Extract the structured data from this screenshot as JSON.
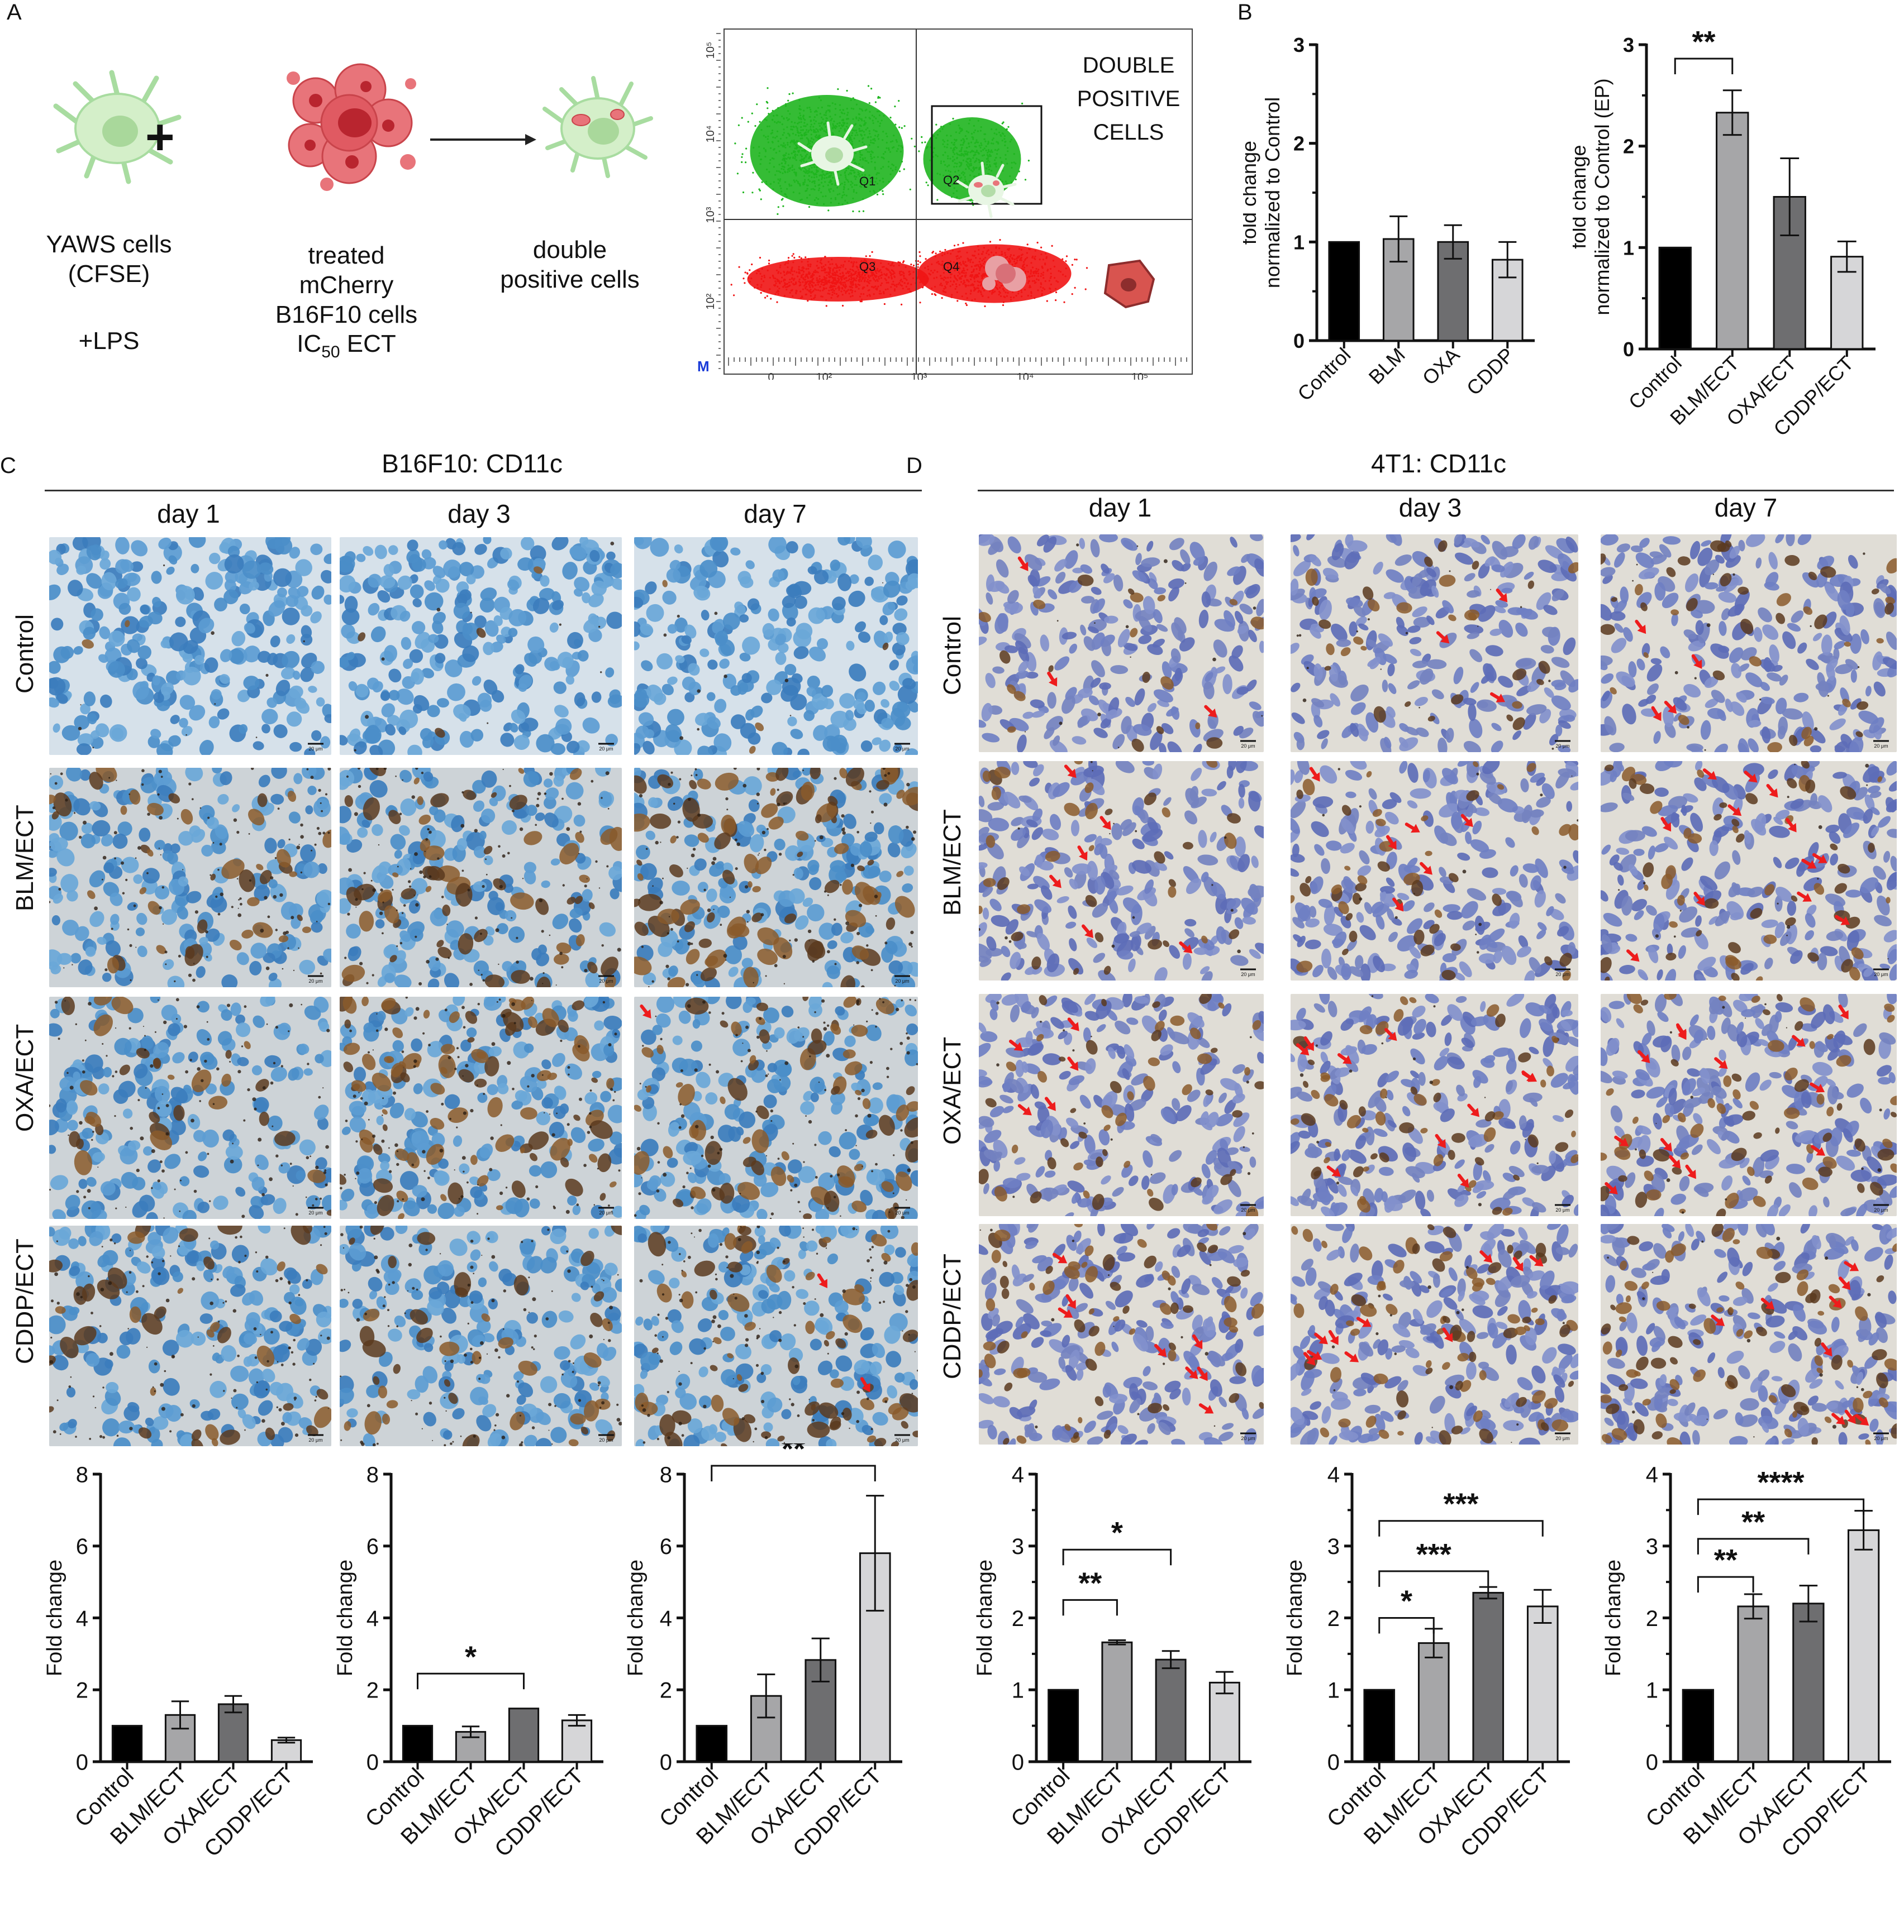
{
  "panels": {
    "A": "A",
    "B": "B",
    "C": "C",
    "D": "D"
  },
  "schematic": {
    "yaws_line1": "YAWS cells",
    "yaws_line2": "(CFSE)",
    "lps": "+LPS",
    "treated_line1": "treated",
    "treated_line2": "mCherry",
    "treated_line3": "B16F10 cells",
    "treated_line4_base": "IC",
    "treated_line4_sub": "50",
    "treated_line4_rest": " ECT",
    "double_line1": "double",
    "double_line2": "positive cells",
    "plus": "+"
  },
  "flow": {
    "label_line1": "DOUBLE",
    "label_line2": "POSITIVE",
    "label_line3": "CELLS",
    "q1": "Q1",
    "q2": "Q2",
    "q3": "Q3",
    "q4": "Q4",
    "m": "M",
    "yticks": [
      "10⁵",
      "10⁴",
      "10³",
      "10²"
    ],
    "xticks": [
      "0",
      "10²",
      "10³",
      "10⁴",
      "10⁵"
    ],
    "colors": {
      "green": "#1fb51f",
      "red": "#f01414"
    }
  },
  "section_c": {
    "title": "B16F10: CD11c",
    "cols": [
      "day 1",
      "day 3",
      "day 7"
    ],
    "rows": [
      "Control",
      "BLM/ECT",
      "OXA/ECT",
      "CDDP/ECT"
    ]
  },
  "section_d": {
    "title": "4T1: CD11c",
    "cols": [
      "day 1",
      "day 3",
      "day 7"
    ],
    "rows": [
      "Control",
      "BLM/ECT",
      "OXA/ECT",
      "CDDP/ECT"
    ]
  },
  "scale_bar": "20 μm",
  "chart_data": [
    {
      "id": "B1",
      "type": "bar",
      "categories": [
        "Control",
        "BLM",
        "OXA",
        "CDDP"
      ],
      "values": [
        1.0,
        1.03,
        1.0,
        0.82
      ],
      "errors": [
        0,
        0.23,
        0.17,
        0.18
      ],
      "ylabel": "fold change\nnormalized to Control",
      "ylim": [
        0,
        3
      ],
      "yticks": [
        "0",
        "1",
        "2",
        "3"
      ],
      "sig": []
    },
    {
      "id": "B2",
      "type": "bar",
      "categories": [
        "Control",
        "BLM/ECT",
        "OXA/ECT",
        "CDDP/ECT"
      ],
      "values": [
        1.0,
        2.33,
        1.5,
        0.91
      ],
      "errors": [
        0,
        0.22,
        0.38,
        0.15
      ],
      "ylabel": "fold change\nnormalized to Control (EP)",
      "ylim": [
        0,
        3
      ],
      "yticks": [
        "0",
        "1",
        "2",
        "3"
      ],
      "sig": [
        {
          "from": 0,
          "to": 1,
          "label": "**"
        }
      ]
    },
    {
      "id": "C1",
      "type": "bar",
      "categories": [
        "Control",
        "BLM/ECT",
        "OXA/ECT",
        "CDDP/ECT"
      ],
      "values": [
        1.0,
        1.3,
        1.6,
        0.6
      ],
      "errors": [
        0,
        0.38,
        0.23,
        0.07
      ],
      "ylabel": "Fold change",
      "ylim": [
        0,
        8
      ],
      "yticks": [
        "0",
        "2",
        "4",
        "6",
        "8"
      ],
      "sig": []
    },
    {
      "id": "C2",
      "type": "bar",
      "categories": [
        "Control",
        "BLM/ECT",
        "OXA/ECT",
        "CDDP/ECT"
      ],
      "values": [
        1.0,
        0.83,
        1.48,
        1.15
      ],
      "errors": [
        0,
        0.15,
        0,
        0.15
      ],
      "ylabel": "Fold change",
      "ylim": [
        0,
        8
      ],
      "yticks": [
        "0",
        "2",
        "4",
        "6",
        "8"
      ],
      "sig": [
        {
          "from": 0,
          "to": 2,
          "label": "*"
        }
      ]
    },
    {
      "id": "C3",
      "type": "bar",
      "categories": [
        "Control",
        "BLM/ECT",
        "OXA/ECT",
        "CDDP/ECT"
      ],
      "values": [
        1.0,
        1.83,
        2.83,
        5.8
      ],
      "errors": [
        0,
        0.6,
        0.6,
        1.6
      ],
      "ylabel": "Fold change",
      "ylim": [
        0,
        8
      ],
      "yticks": [
        "0",
        "2",
        "4",
        "6",
        "8"
      ],
      "sig": [
        {
          "from": 0,
          "to": 3,
          "label": "**"
        }
      ]
    },
    {
      "id": "D1",
      "type": "bar",
      "categories": [
        "Control",
        "BLM/ECT",
        "OXA/ECT",
        "CDDP/ECT"
      ],
      "values": [
        1.0,
        1.66,
        1.42,
        1.1
      ],
      "errors": [
        0,
        0.03,
        0.12,
        0.15
      ],
      "ylabel": "Fold change",
      "ylim": [
        0,
        4
      ],
      "yticks": [
        "0",
        "1",
        "2",
        "3",
        "4"
      ],
      "sig": [
        {
          "from": 0,
          "to": 1,
          "label": "**"
        },
        {
          "from": 0,
          "to": 2,
          "label": "*"
        }
      ]
    },
    {
      "id": "D2",
      "type": "bar",
      "categories": [
        "Control",
        "BLM/ECT",
        "OXA/ECT",
        "CDDP/ECT"
      ],
      "values": [
        1.0,
        1.65,
        2.35,
        2.16
      ],
      "errors": [
        0,
        0.2,
        0.08,
        0.23
      ],
      "ylabel": "Fold change",
      "ylim": [
        0,
        4
      ],
      "yticks": [
        "0",
        "1",
        "2",
        "3",
        "4"
      ],
      "sig": [
        {
          "from": 0,
          "to": 1,
          "label": "*"
        },
        {
          "from": 0,
          "to": 2,
          "label": "***"
        },
        {
          "from": 0,
          "to": 3,
          "label": "***"
        }
      ]
    },
    {
      "id": "D3",
      "type": "bar",
      "categories": [
        "Control",
        "BLM/ECT",
        "OXA/ECT",
        "CDDP/ECT"
      ],
      "values": [
        1.0,
        2.16,
        2.2,
        3.22
      ],
      "errors": [
        0,
        0.17,
        0.25,
        0.27
      ],
      "ylabel": "Fold change",
      "ylim": [
        0,
        4
      ],
      "yticks": [
        "0",
        "1",
        "2",
        "3",
        "4"
      ],
      "sig": [
        {
          "from": 0,
          "to": 1,
          "label": "**"
        },
        {
          "from": 0,
          "to": 2,
          "label": "**"
        },
        {
          "from": 0,
          "to": 3,
          "label": "****"
        }
      ]
    }
  ],
  "bar_colors": [
    "#000000",
    "#a6a6a8",
    "#6e6e70",
    "#d6d6d8"
  ]
}
